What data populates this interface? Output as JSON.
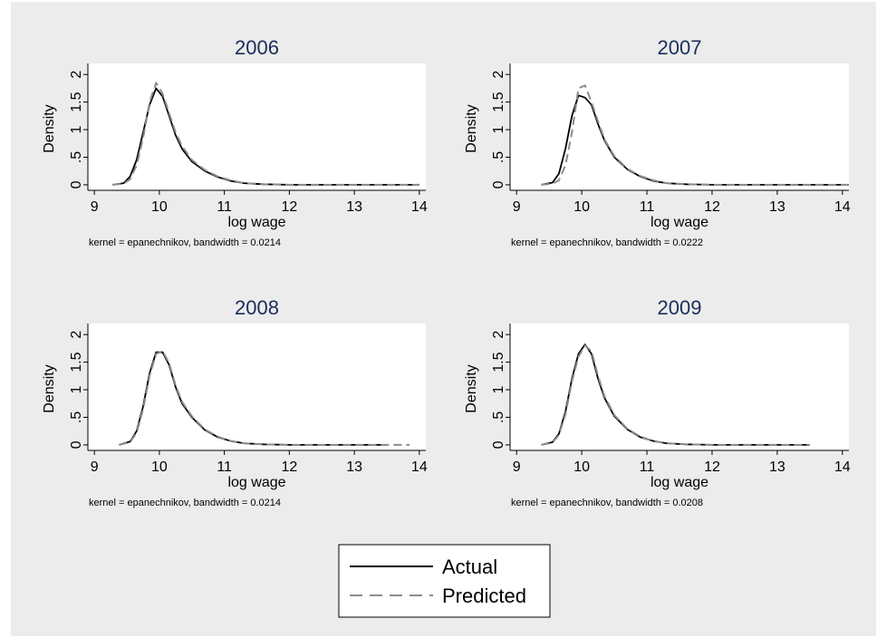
{
  "colors": {
    "actual": "#000000",
    "predicted": "#8c8c8c",
    "title": "#1a2e5a",
    "background": "#ececec",
    "plot": "#ffffff"
  },
  "legend": {
    "placement": "bottom-center",
    "entries": [
      {
        "label": "Actual",
        "style": "solid",
        "color": "#000000"
      },
      {
        "label": "Predicted",
        "style": "dashed",
        "color": "#8c8c8c"
      }
    ]
  },
  "chart_data": [
    {
      "type": "line",
      "title": "2006",
      "xlabel": "log wage",
      "ylabel": "Density",
      "note": "kernel = epanechnikov, bandwidth = 0.0214",
      "xlim": [
        8.9,
        14.1
      ],
      "ylim": [
        -0.1,
        2.2
      ],
      "xticks": [
        9,
        10,
        11,
        12,
        13,
        14
      ],
      "yticks": [
        {
          "v": 0,
          "l": "0"
        },
        {
          "v": 0.5,
          "l": ".5"
        },
        {
          "v": 1,
          "l": "1"
        },
        {
          "v": 1.5,
          "l": "1.5"
        },
        {
          "v": 2,
          "l": "2"
        }
      ],
      "series": [
        {
          "name": "Actual",
          "x": [
            9.28,
            9.45,
            9.55,
            9.65,
            9.75,
            9.85,
            9.95,
            10.05,
            10.15,
            10.25,
            10.35,
            10.5,
            10.7,
            10.9,
            11.1,
            11.3,
            11.6,
            12,
            12.5,
            13,
            13.5,
            14
          ],
          "y": [
            0,
            0.03,
            0.15,
            0.45,
            0.95,
            1.45,
            1.75,
            1.6,
            1.25,
            0.9,
            0.65,
            0.42,
            0.25,
            0.14,
            0.07,
            0.03,
            0.01,
            0,
            0,
            0,
            0,
            0
          ]
        },
        {
          "name": "Predicted",
          "x": [
            9.28,
            9.45,
            9.55,
            9.65,
            9.75,
            9.85,
            9.95,
            10.05,
            10.15,
            10.25,
            10.35,
            10.5,
            10.7,
            10.9,
            11.1,
            11.3,
            11.6,
            12,
            12.5,
            13,
            13.5,
            14
          ],
          "y": [
            0,
            0.02,
            0.1,
            0.35,
            0.85,
            1.5,
            1.85,
            1.65,
            1.3,
            0.95,
            0.7,
            0.45,
            0.27,
            0.15,
            0.08,
            0.03,
            0.01,
            0,
            0,
            0,
            0,
            0
          ]
        }
      ]
    },
    {
      "type": "line",
      "title": "2007",
      "xlabel": "log wage",
      "ylabel": "Density",
      "note": "kernel = epanechnikov, bandwidth = 0.0222",
      "xlim": [
        8.9,
        14.1
      ],
      "ylim": [
        -0.1,
        2.2
      ],
      "xticks": [
        9,
        10,
        11,
        12,
        13,
        14
      ],
      "yticks": [
        {
          "v": 0,
          "l": "0"
        },
        {
          "v": 0.5,
          "l": ".5"
        },
        {
          "v": 1,
          "l": "1"
        },
        {
          "v": 1.5,
          "l": "1.5"
        },
        {
          "v": 2,
          "l": "2"
        }
      ],
      "series": [
        {
          "name": "Actual",
          "x": [
            9.38,
            9.55,
            9.65,
            9.75,
            9.85,
            9.95,
            10.05,
            10.15,
            10.25,
            10.35,
            10.5,
            10.7,
            10.9,
            11.1,
            11.3,
            11.6,
            12,
            12.5,
            13,
            13.5,
            14.1
          ],
          "y": [
            0,
            0.04,
            0.2,
            0.65,
            1.25,
            1.62,
            1.58,
            1.45,
            1.1,
            0.8,
            0.5,
            0.28,
            0.15,
            0.07,
            0.03,
            0.01,
            0,
            0,
            0,
            0,
            0
          ]
        },
        {
          "name": "Predicted",
          "x": [
            9.38,
            9.55,
            9.65,
            9.75,
            9.85,
            9.95,
            10.05,
            10.15,
            10.25,
            10.35,
            10.5,
            10.7,
            10.9,
            11.1,
            11.3,
            11.6,
            12,
            12.5,
            13,
            13.5,
            14.1
          ],
          "y": [
            0,
            0.02,
            0.08,
            0.35,
            0.95,
            1.75,
            1.8,
            1.5,
            1.15,
            0.82,
            0.52,
            0.29,
            0.16,
            0.08,
            0.03,
            0.01,
            0,
            0,
            0,
            0,
            0
          ]
        }
      ]
    },
    {
      "type": "line",
      "title": "2008",
      "xlabel": "log wage",
      "ylabel": "Density",
      "note": "kernel = epanechnikov, bandwidth = 0.0214",
      "xlim": [
        8.9,
        14.1
      ],
      "ylim": [
        -0.1,
        2.2
      ],
      "xticks": [
        9,
        10,
        11,
        12,
        13,
        14
      ],
      "yticks": [
        {
          "v": 0,
          "l": "0"
        },
        {
          "v": 0.5,
          "l": ".5"
        },
        {
          "v": 1,
          "l": "1"
        },
        {
          "v": 1.5,
          "l": "1.5"
        },
        {
          "v": 2,
          "l": "2"
        }
      ],
      "series": [
        {
          "name": "Actual",
          "x": [
            9.38,
            9.55,
            9.65,
            9.75,
            9.85,
            9.95,
            10.05,
            10.15,
            10.25,
            10.35,
            10.5,
            10.7,
            10.9,
            11.1,
            11.3,
            11.6,
            12,
            12.5,
            13,
            13.5
          ],
          "y": [
            0,
            0.06,
            0.25,
            0.7,
            1.3,
            1.68,
            1.68,
            1.45,
            1.05,
            0.75,
            0.5,
            0.27,
            0.14,
            0.07,
            0.03,
            0.01,
            0,
            0,
            0,
            0
          ]
        },
        {
          "name": "Predicted",
          "x": [
            9.38,
            9.55,
            9.65,
            9.75,
            9.85,
            9.95,
            10.05,
            10.15,
            10.25,
            10.35,
            10.5,
            10.7,
            10.9,
            11.1,
            11.3,
            11.6,
            12,
            12.5,
            13,
            13.5,
            13.85
          ],
          "y": [
            0,
            0.05,
            0.22,
            0.65,
            1.25,
            1.65,
            1.7,
            1.48,
            1.08,
            0.78,
            0.52,
            0.28,
            0.15,
            0.07,
            0.03,
            0.01,
            0,
            0,
            0,
            0,
            0
          ]
        }
      ]
    },
    {
      "type": "line",
      "title": "2009",
      "xlabel": "log wage",
      "ylabel": "Density",
      "note": "kernel = epanechnikov, bandwidth = 0.0208",
      "xlim": [
        8.9,
        14.1
      ],
      "ylim": [
        -0.1,
        2.2
      ],
      "xticks": [
        9,
        10,
        11,
        12,
        13,
        14
      ],
      "yticks": [
        {
          "v": 0,
          "l": "0"
        },
        {
          "v": 0.5,
          "l": ".5"
        },
        {
          "v": 1,
          "l": "1"
        },
        {
          "v": 1.5,
          "l": "1.5"
        },
        {
          "v": 2,
          "l": "2"
        }
      ],
      "series": [
        {
          "name": "Actual",
          "x": [
            9.38,
            9.55,
            9.65,
            9.75,
            9.85,
            9.95,
            10.05,
            10.15,
            10.25,
            10.35,
            10.5,
            10.7,
            10.9,
            11.1,
            11.3,
            11.6,
            12,
            12.5,
            13,
            13.5
          ],
          "y": [
            0,
            0.05,
            0.2,
            0.6,
            1.2,
            1.65,
            1.82,
            1.65,
            1.2,
            0.85,
            0.52,
            0.28,
            0.14,
            0.07,
            0.03,
            0.01,
            0,
            0,
            0,
            0
          ]
        },
        {
          "name": "Predicted",
          "x": [
            9.38,
            9.55,
            9.65,
            9.75,
            9.85,
            9.95,
            10.05,
            10.15,
            10.25,
            10.35,
            10.5,
            10.7,
            10.9,
            11.1,
            11.3,
            11.6,
            12,
            12.5,
            13,
            13.5
          ],
          "y": [
            0,
            0.04,
            0.18,
            0.55,
            1.15,
            1.6,
            1.8,
            1.7,
            1.25,
            0.88,
            0.54,
            0.29,
            0.15,
            0.07,
            0.03,
            0.01,
            0,
            0,
            0,
            0
          ]
        }
      ]
    }
  ]
}
